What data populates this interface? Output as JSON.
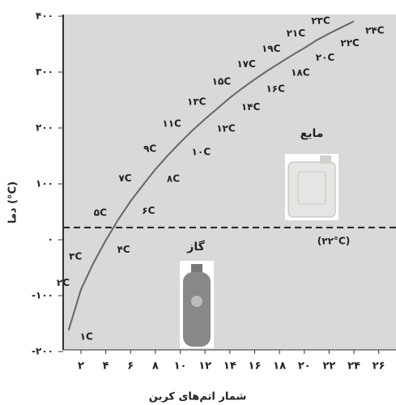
{
  "chart_data": {
    "type": "line",
    "x_label": "شمار اتم‌های کربن",
    "y_label": "دما (°C)",
    "x": [
      1,
      2,
      3,
      4,
      5,
      6,
      7,
      8,
      9,
      10,
      11,
      12,
      13,
      14,
      15,
      16,
      17,
      18,
      19,
      20,
      21,
      22,
      23,
      24
    ],
    "series": [
      {
        "color": "#666666",
        "values": [
          -162,
          -89,
          -42,
          -1,
          36,
          69,
          98,
          126,
          151,
          174,
          196,
          216,
          235,
          254,
          271,
          287,
          302,
          316,
          330,
          343,
          357,
          369,
          380,
          391
        ],
        "value_labels": [
          "۱C",
          "۲C",
          "۳C",
          "۴C",
          "۵C",
          "۶C",
          "۷C",
          "۸C",
          "۹C",
          "۱۰C",
          "۱۱C",
          "۱۲C",
          "۱۳C",
          "۱۴C",
          "۱۵C",
          "۱۶C",
          "۱۷C",
          "۱۸C",
          "۱۹C",
          "۲۰C",
          "۲۱C",
          "۲۲C",
          "۲۳C",
          "۲۴C"
        ]
      }
    ],
    "reference_line": {
      "value": 22,
      "label": "(۲۲°C)"
    },
    "annotations": [
      "گاز",
      "مایع"
    ],
    "xlim": [
      0.5,
      27
    ],
    "ylim": [
      -200,
      400
    ],
    "xticks": [
      {
        "value": 2,
        "label": "۲"
      },
      {
        "value": 4,
        "label": "۴"
      },
      {
        "value": 6,
        "label": "۶"
      },
      {
        "value": 8,
        "label": "۸"
      },
      {
        "value": 10,
        "label": "۱۰"
      },
      {
        "value": 12,
        "label": "۱۲"
      },
      {
        "value": 14,
        "label": "۱۴"
      },
      {
        "value": 16,
        "label": "۱۶"
      },
      {
        "value": 18,
        "label": "۱۸"
      },
      {
        "value": 20,
        "label": "۲۰"
      },
      {
        "value": 22,
        "label": "۲۲"
      },
      {
        "value": 24,
        "label": "۲۴"
      },
      {
        "value": 26,
        "label": "۲۶"
      }
    ],
    "yticks": [
      {
        "value": 400,
        "label": "۴۰۰"
      },
      {
        "value": 300,
        "label": "۳۰۰"
      },
      {
        "value": 200,
        "label": "۲۰۰"
      },
      {
        "value": 100,
        "label": "۱۰۰"
      },
      {
        "value": 0,
        "label": "۰"
      },
      {
        "value": -100,
        "label": "-۱۰۰"
      },
      {
        "value": -200,
        "label": "-۲۰۰"
      }
    ]
  }
}
